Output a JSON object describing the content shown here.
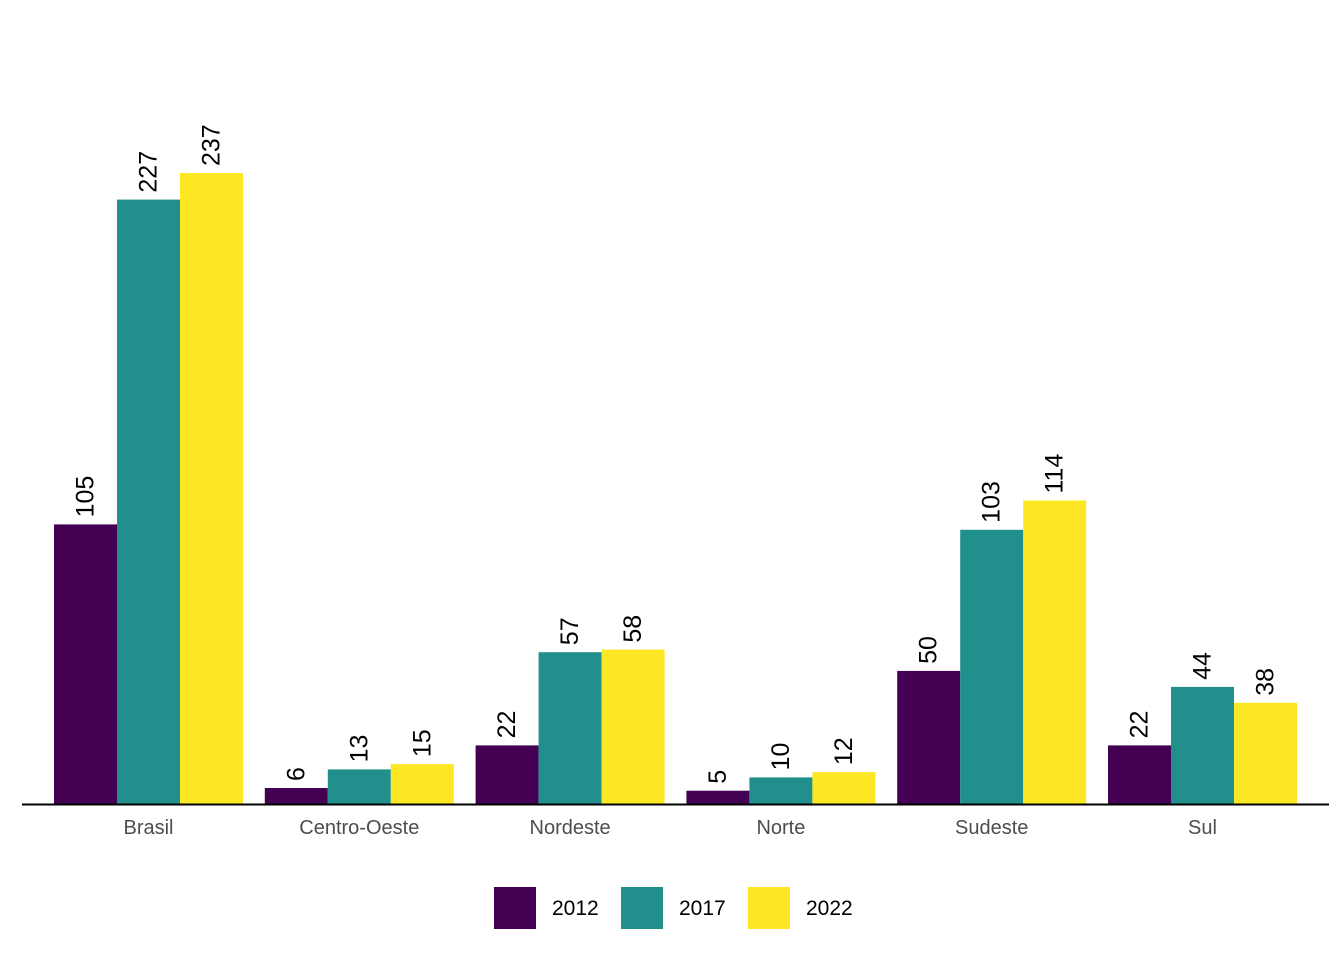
{
  "chart_data": {
    "type": "bar",
    "title": "",
    "xlabel": "",
    "ylabel": "",
    "categories": [
      "Brasil",
      "Centro-Oeste",
      "Nordeste",
      "Norte",
      "Sudeste",
      "Sul"
    ],
    "series": [
      {
        "name": "2012",
        "color": "#440154",
        "values": [
          105,
          6,
          22,
          5,
          50,
          22
        ]
      },
      {
        "name": "2017",
        "color": "#21908C",
        "values": [
          227,
          13,
          57,
          10,
          103,
          44
        ]
      },
      {
        "name": "2022",
        "color": "#FDE725",
        "values": [
          237,
          15,
          58,
          12,
          114,
          38
        ]
      }
    ],
    "ylim": [
      0,
      237
    ],
    "grid": false,
    "legend_position": "bottom",
    "axis_line_color": "#000000",
    "tick_label_color": "#4d4d4d"
  }
}
